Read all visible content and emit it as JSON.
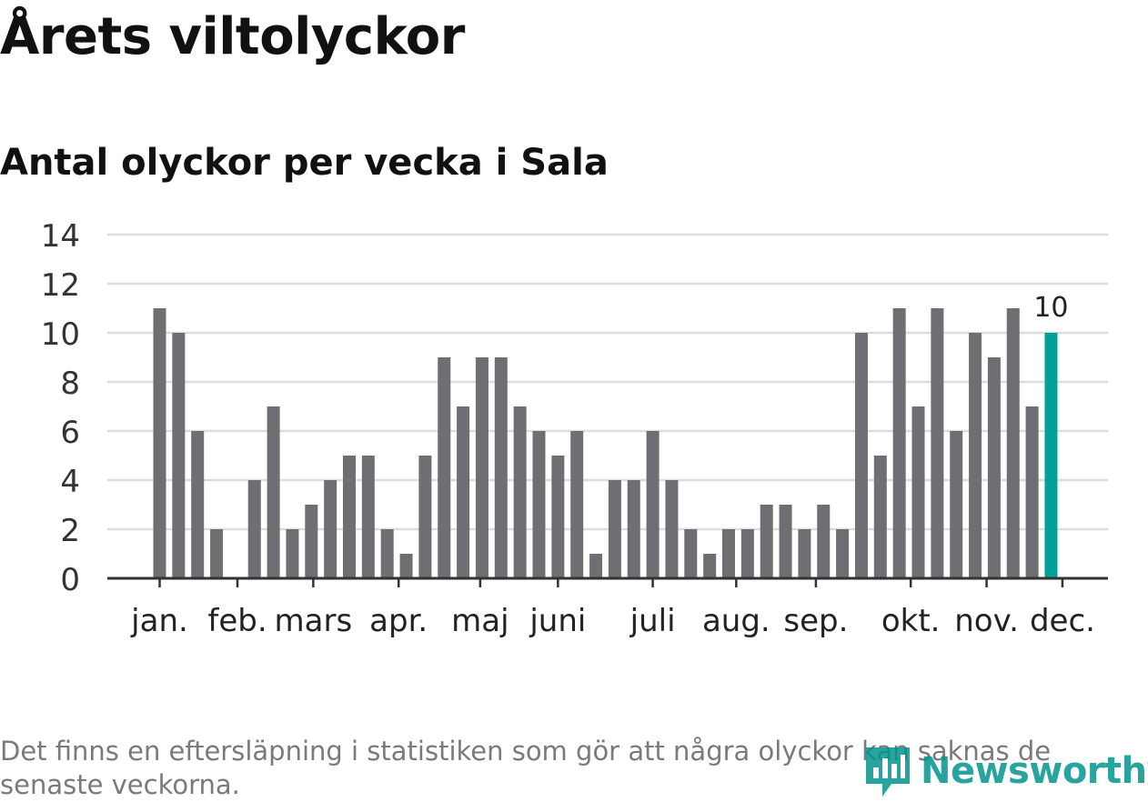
{
  "header": {
    "title": "Årets viltolyckor",
    "subtitle": "Antal olyckor per vecka i Sala"
  },
  "footer": {
    "note": "Det finns en eftersläpning i statistiken som gör att några olyckor kan saknas de senaste veckorna.",
    "brand": "Newsworthy"
  },
  "colors": {
    "bar": "#6f6e73",
    "highlight": "#00a19a",
    "grid": "#dcdcdc",
    "axis": "#333333",
    "brand": "#00948c"
  },
  "chart_data": {
    "type": "bar",
    "title": "Antal olyckor per vecka i Sala",
    "xlabel": "",
    "ylabel": "",
    "ylim": [
      0,
      14
    ],
    "yticks": [
      0,
      2,
      4,
      6,
      8,
      10,
      12,
      14
    ],
    "grid": true,
    "values": [
      11,
      10,
      6,
      2,
      0,
      4,
      7,
      2,
      3,
      4,
      5,
      5,
      2,
      1,
      5,
      9,
      7,
      9,
      9,
      7,
      6,
      5,
      6,
      1,
      4,
      4,
      6,
      4,
      2,
      1,
      2,
      2,
      3,
      3,
      2,
      3,
      2,
      10,
      5,
      11,
      7,
      11,
      6,
      10,
      9,
      11,
      7,
      10
    ],
    "highlight_index": 47,
    "highlight_label": "10",
    "month_labels": [
      {
        "label": "jan.",
        "week": 0.0
      },
      {
        "label": "feb.",
        "week": 4.1
      },
      {
        "label": "mars",
        "week": 8.1
      },
      {
        "label": "apr.",
        "week": 12.6
      },
      {
        "label": "maj",
        "week": 16.9
      },
      {
        "label": "juni",
        "week": 21.0
      },
      {
        "label": "juli",
        "week": 26.0
      },
      {
        "label": "aug.",
        "week": 30.4
      },
      {
        "label": "sep.",
        "week": 34.6
      },
      {
        "label": "okt.",
        "week": 39.6
      },
      {
        "label": "nov.",
        "week": 43.6
      },
      {
        "label": "dec.",
        "week": 47.6
      }
    ]
  }
}
